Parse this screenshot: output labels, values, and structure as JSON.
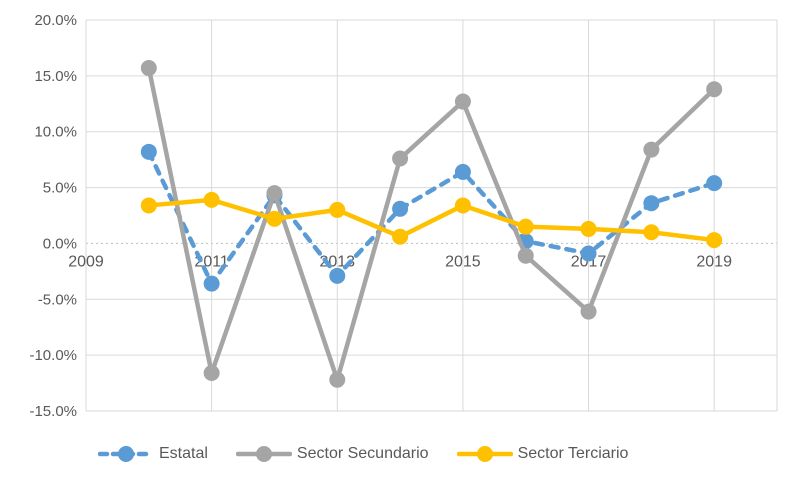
{
  "chart_data": {
    "type": "line",
    "title": "",
    "x": [
      2010,
      2011,
      2012,
      2013,
      2014,
      2015,
      2016,
      2017,
      2018,
      2019
    ],
    "series": [
      {
        "name": "Estatal",
        "color": "#5B9BD5",
        "dash": true,
        "values": [
          8.2,
          -3.6,
          4.3,
          -2.9,
          3.1,
          6.4,
          0.2,
          -0.9,
          3.6,
          5.4
        ]
      },
      {
        "name": "Sector Secundario",
        "color": "#A5A5A5",
        "dash": false,
        "values": [
          15.7,
          -11.6,
          4.5,
          -12.2,
          7.6,
          12.7,
          -1.1,
          -6.1,
          8.4,
          13.8
        ]
      },
      {
        "name": "Sector Terciario",
        "color": "#FFC000",
        "dash": false,
        "values": [
          3.4,
          3.9,
          2.2,
          3.0,
          0.6,
          3.4,
          1.5,
          1.3,
          1.0,
          0.3
        ]
      }
    ],
    "y_axis": {
      "min": -15,
      "max": 20,
      "tick_values": [
        20,
        15,
        10,
        5,
        0,
        -5,
        -10,
        -15
      ],
      "tick_labels": [
        "20.0%",
        "15.0%",
        "10.0%",
        "5.0%",
        "0.0%",
        "-5.0%",
        "-10.0%",
        "-15.0%"
      ]
    },
    "x_axis": {
      "min": 2009,
      "max": 2020,
      "tick_values": [
        2009,
        2011,
        2013,
        2015,
        2017,
        2019
      ],
      "tick_labels": [
        "2009",
        "2011",
        "2013",
        "2015",
        "2017",
        "2019"
      ]
    },
    "grid": true,
    "legend_position": "bottom",
    "zero_line_style": "dotted"
  },
  "colors": {
    "background": "#FFFFFF",
    "gridline": "#D9D9D9",
    "zero_line": "#BFBFBF",
    "axis_text": "#595959"
  }
}
